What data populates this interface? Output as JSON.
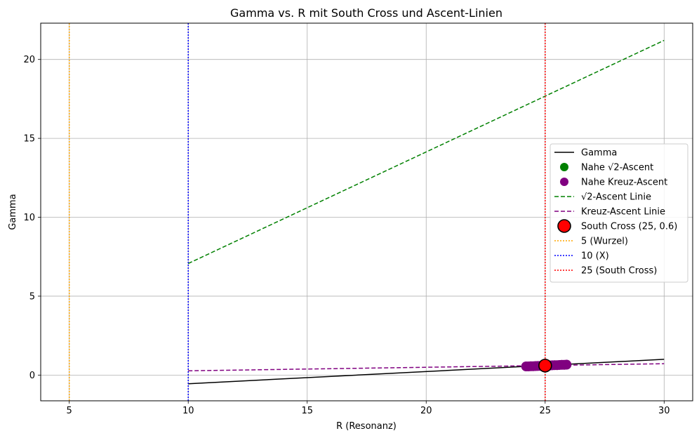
{
  "chart_data": {
    "type": "line",
    "title": "Gamma vs. R mit South Cross und Ascent-Linien",
    "xlabel": "R (Resonanz)",
    "ylabel": "Gamma",
    "xlim": [
      3.8,
      31.2
    ],
    "ylim": [
      -1.63,
      22.3
    ],
    "xticks": [
      5,
      10,
      15,
      20,
      25,
      30
    ],
    "yticks": [
      0,
      5,
      10,
      15,
      20
    ],
    "grid": true,
    "legend_position": "center-right",
    "series": [
      {
        "name": "Gamma",
        "kind": "line",
        "color": "#000000",
        "dash": "solid",
        "x": [
          10,
          30
        ],
        "y": [
          -0.55,
          1.0
        ]
      },
      {
        "name": "Nahe √2-Ascent",
        "kind": "scatter",
        "color": "#008000",
        "x": [],
        "y": []
      },
      {
        "name": "Nahe Kreuz-Ascent",
        "kind": "scatter",
        "color": "#800080",
        "x": [
          24.2,
          24.3,
          24.4,
          24.5,
          24.6,
          24.7,
          24.8,
          24.9,
          25.0,
          25.1,
          25.2,
          25.3,
          25.4,
          25.5,
          25.6,
          25.7,
          25.8,
          25.9
        ],
        "y": [
          0.55,
          0.55,
          0.56,
          0.56,
          0.57,
          0.58,
          0.58,
          0.59,
          0.6,
          0.6,
          0.61,
          0.62,
          0.63,
          0.63,
          0.64,
          0.65,
          0.65,
          0.66
        ]
      },
      {
        "name": "√2-Ascent Linie",
        "kind": "line",
        "color": "#008000",
        "dash": "dashed",
        "x": [
          10,
          30
        ],
        "y": [
          7.07,
          21.21
        ]
      },
      {
        "name": "Kreuz-Ascent Linie",
        "kind": "line",
        "color": "#800080",
        "dash": "dashed",
        "x": [
          10,
          30
        ],
        "y": [
          0.27,
          0.72
        ]
      },
      {
        "name": "South Cross (25, 0.6)",
        "kind": "marker",
        "color": "#ff0000",
        "edge": "#000000",
        "x": [
          25
        ],
        "y": [
          0.6
        ]
      },
      {
        "name": "5 (Wurzel)",
        "kind": "vline",
        "color": "#ffa500",
        "dash": "dotted",
        "x": [
          5
        ]
      },
      {
        "name": "10 (X)",
        "kind": "vline",
        "color": "#0000ff",
        "dash": "dotted",
        "x": [
          10
        ]
      },
      {
        "name": "25 (South Cross)",
        "kind": "vline",
        "color": "#ff0000",
        "dash": "dotted",
        "x": [
          25
        ]
      }
    ]
  }
}
